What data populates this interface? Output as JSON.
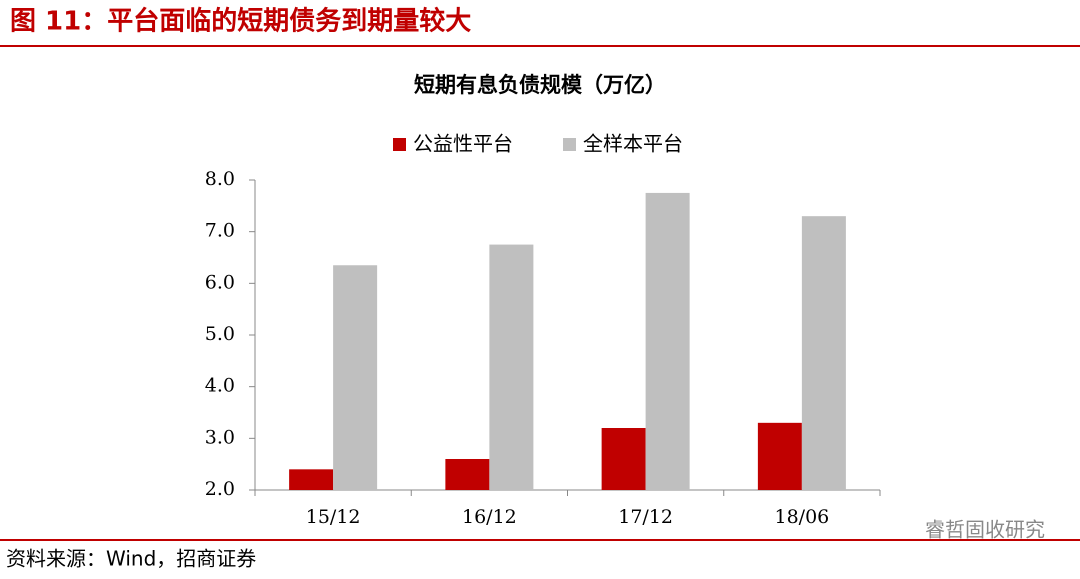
{
  "header": {
    "title": "图 11：平台面临的短期债务到期量较大"
  },
  "chart_data": {
    "type": "bar",
    "title": "短期有息负债规模（万亿）",
    "categories": [
      "15/12",
      "16/12",
      "17/12",
      "18/06"
    ],
    "series": [
      {
        "name": "公益性平台",
        "color": "#c00000",
        "values": [
          2.4,
          2.6,
          3.2,
          3.3
        ]
      },
      {
        "name": "全样本平台",
        "color": "#bfbfbf",
        "values": [
          6.35,
          6.75,
          7.75,
          7.3
        ]
      }
    ],
    "ylim": [
      2,
      8
    ],
    "yticks": [
      {
        "value": 2,
        "label": "2.0"
      },
      {
        "value": 3,
        "label": "3.0"
      },
      {
        "value": 4,
        "label": "4.0"
      },
      {
        "value": 5,
        "label": "5.0"
      },
      {
        "value": 6,
        "label": "6.0"
      },
      {
        "value": 7,
        "label": "7.0"
      },
      {
        "value": 8,
        "label": "8.0"
      }
    ],
    "legend": "top"
  },
  "footer": {
    "source": "资料来源：Wind，招商证券",
    "watermark": "睿哲固收研究"
  }
}
